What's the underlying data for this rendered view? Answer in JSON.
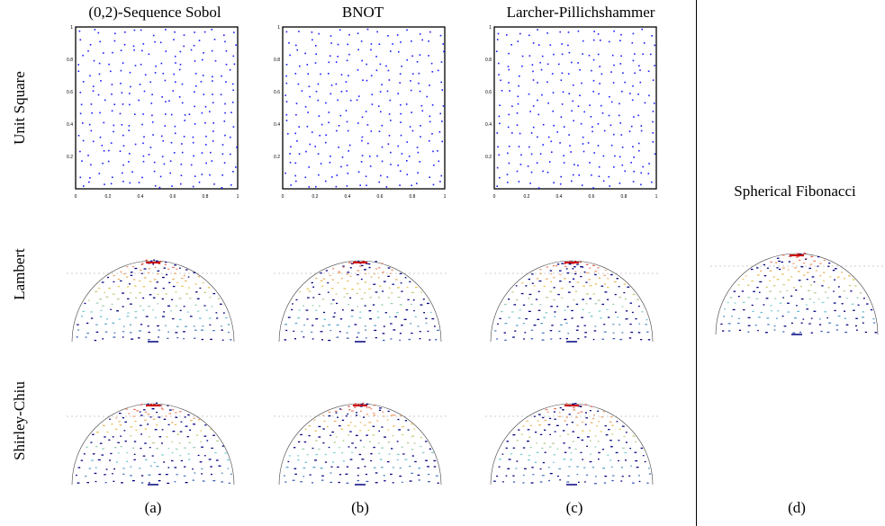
{
  "figure": {
    "columns": [
      {
        "id": "a",
        "title": "(0,2)-Sequence Sobol",
        "sub_label": "(a)"
      },
      {
        "id": "b",
        "title": "BNOT",
        "sub_label": "(b)"
      },
      {
        "id": "c",
        "title": "Larcher-Pillichshammer",
        "sub_label": "(c)"
      },
      {
        "id": "d",
        "title": "Spherical Fibonacci",
        "sub_label": "(d)"
      }
    ],
    "rows": [
      "Unit Square",
      "Lambert",
      "Shirley-Chiu"
    ],
    "unit_square_axis": {
      "x_ticks": [
        "0",
        "0.2",
        "0.4",
        "0.6",
        "0.8",
        "1"
      ],
      "y_ticks": [
        "0.2",
        "0.4",
        "0.6",
        "0.8",
        "1"
      ]
    },
    "colors": {
      "sample_points": "#1a1aff",
      "hemisphere_top": "#cc0000",
      "hemisphere_bottom": "#000080"
    }
  }
}
